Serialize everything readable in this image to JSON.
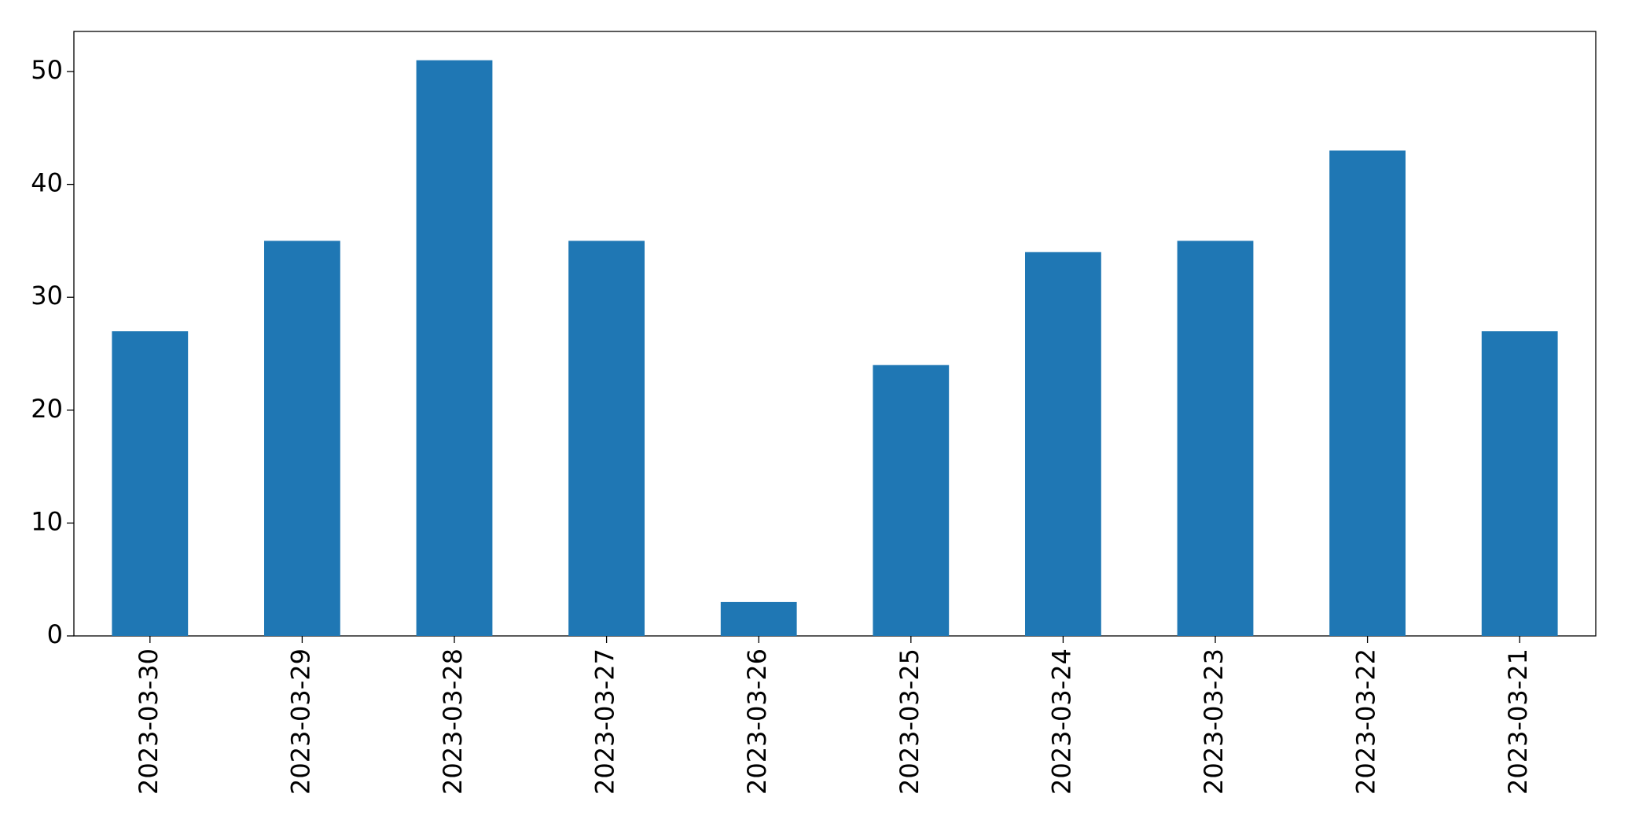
{
  "chart_data": {
    "type": "bar",
    "categories": [
      "2023-03-30",
      "2023-03-29",
      "2023-03-28",
      "2023-03-27",
      "2023-03-26",
      "2023-03-25",
      "2023-03-24",
      "2023-03-23",
      "2023-03-22",
      "2023-03-21"
    ],
    "values": [
      27,
      35,
      51,
      35,
      3,
      24,
      34,
      35,
      43,
      27
    ],
    "color": "#1f77b4",
    "ylim": [
      0,
      53.55
    ],
    "yticks": [
      0,
      10,
      20,
      30,
      40,
      50
    ],
    "grid": false
  }
}
